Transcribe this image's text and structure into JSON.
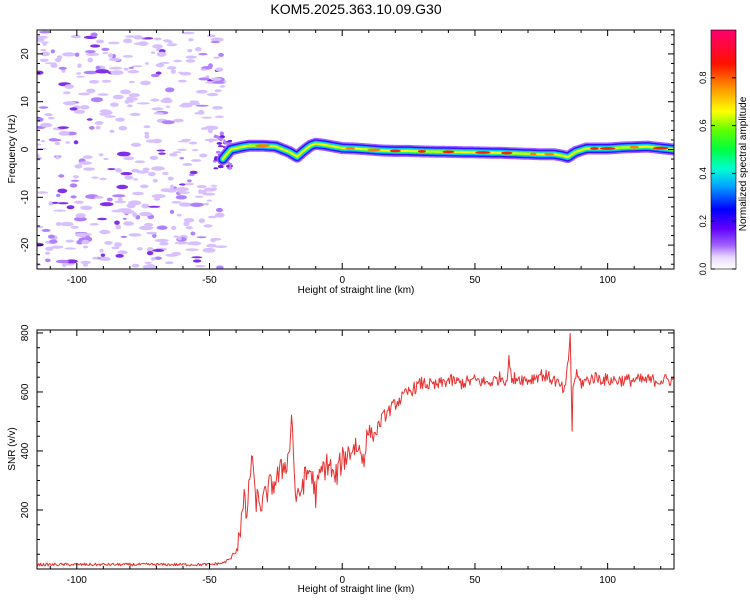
{
  "title": "KOM5.2025.363.10.09.G30",
  "chart_data": [
    {
      "type": "heatmap",
      "xlabel": "Height of straight line (km)",
      "ylabel": "Frequency (Hz)",
      "xlim": [
        -115,
        125
      ],
      "ylim": [
        -25,
        25
      ],
      "xticks": [
        -100,
        -50,
        0,
        50,
        100
      ],
      "yticks": [
        -20,
        -10,
        0,
        10,
        20
      ],
      "xtick_labels": [
        "-100",
        "-50",
        "0",
        "50",
        "100"
      ],
      "ytick_labels": [
        "-20",
        "-10",
        "0",
        "10",
        "20"
      ],
      "noise_region_x": [
        -115,
        -45
      ],
      "trace": {
        "x": [
          -45,
          -42,
          -38,
          -35,
          -30,
          -25,
          -20,
          -17,
          -15,
          -12,
          -10,
          -7,
          -5,
          -2,
          0,
          5,
          10,
          15,
          20,
          25,
          30,
          40,
          50,
          60,
          70,
          75,
          80,
          83,
          85,
          88,
          92,
          100,
          105,
          110,
          115,
          120,
          125
        ],
        "y": [
          -2,
          0,
          0.5,
          0.8,
          0.8,
          0.6,
          -0.5,
          -1.5,
          -0.5,
          0.8,
          1.2,
          1.0,
          0.8,
          0.5,
          0.3,
          0.2,
          0.0,
          -0.2,
          -0.3,
          -0.3,
          -0.4,
          -0.5,
          -0.6,
          -0.7,
          -0.9,
          -1.0,
          -1.0,
          -1.3,
          -1.6,
          -0.5,
          0.2,
          0.2,
          0.4,
          0.5,
          0.6,
          0.3,
          0.0
        ]
      },
      "colorbar": {
        "label": "Normalized spectral amplitude",
        "range": [
          0,
          1
        ],
        "ticks": [
          0.0,
          0.2,
          0.4,
          0.6,
          0.8
        ],
        "tick_labels": [
          "0.0",
          "0.2",
          "0.4",
          "0.6",
          "0.8"
        ],
        "colors": [
          "#ffffff",
          "#c8a8ff",
          "#8a00ff",
          "#0000ff",
          "#00d8ff",
          "#00ff80",
          "#40ff00",
          "#ffff00",
          "#ff8000",
          "#ff0000",
          "#ff0080"
        ]
      }
    },
    {
      "type": "line",
      "xlabel": "Height of straight line (km)",
      "ylabel": "SNR (v/v)",
      "xlim": [
        -115,
        125
      ],
      "ylim": [
        0,
        810
      ],
      "xticks": [
        -100,
        -50,
        0,
        50,
        100
      ],
      "yticks": [
        200,
        400,
        600,
        800
      ],
      "xtick_labels": [
        "-100",
        "-50",
        "0",
        "50",
        "100"
      ],
      "ytick_labels": [
        "200",
        "400",
        "600",
        "800"
      ],
      "series": [
        {
          "name": "SNR",
          "color": "#e83030",
          "x": [
            -115,
            -50,
            -45,
            -42,
            -40,
            -38,
            -37,
            -36,
            -35,
            -34,
            -33,
            -30,
            -28,
            -25,
            -22,
            -20,
            -19,
            -18,
            -17,
            -15,
            -12,
            -10,
            -8,
            -5,
            -3,
            0,
            3,
            5,
            8,
            10,
            12,
            15,
            20,
            25,
            30,
            35,
            40,
            45,
            50,
            55,
            60,
            62,
            63,
            64,
            65,
            70,
            75,
            80,
            84,
            85,
            86,
            86.5,
            87,
            88,
            90,
            95,
            100,
            110,
            125
          ],
          "y": [
            15,
            15,
            20,
            35,
            70,
            160,
            230,
            180,
            280,
            410,
            240,
            220,
            270,
            300,
            350,
            380,
            540,
            300,
            220,
            290,
            340,
            250,
            330,
            360,
            300,
            370,
            400,
            420,
            380,
            470,
            450,
            510,
            560,
            600,
            630,
            620,
            640,
            630,
            640,
            630,
            650,
            640,
            720,
            620,
            650,
            640,
            660,
            640,
            600,
            690,
            810,
            440,
            620,
            660,
            630,
            650,
            640,
            640,
            640
          ]
        }
      ]
    }
  ]
}
